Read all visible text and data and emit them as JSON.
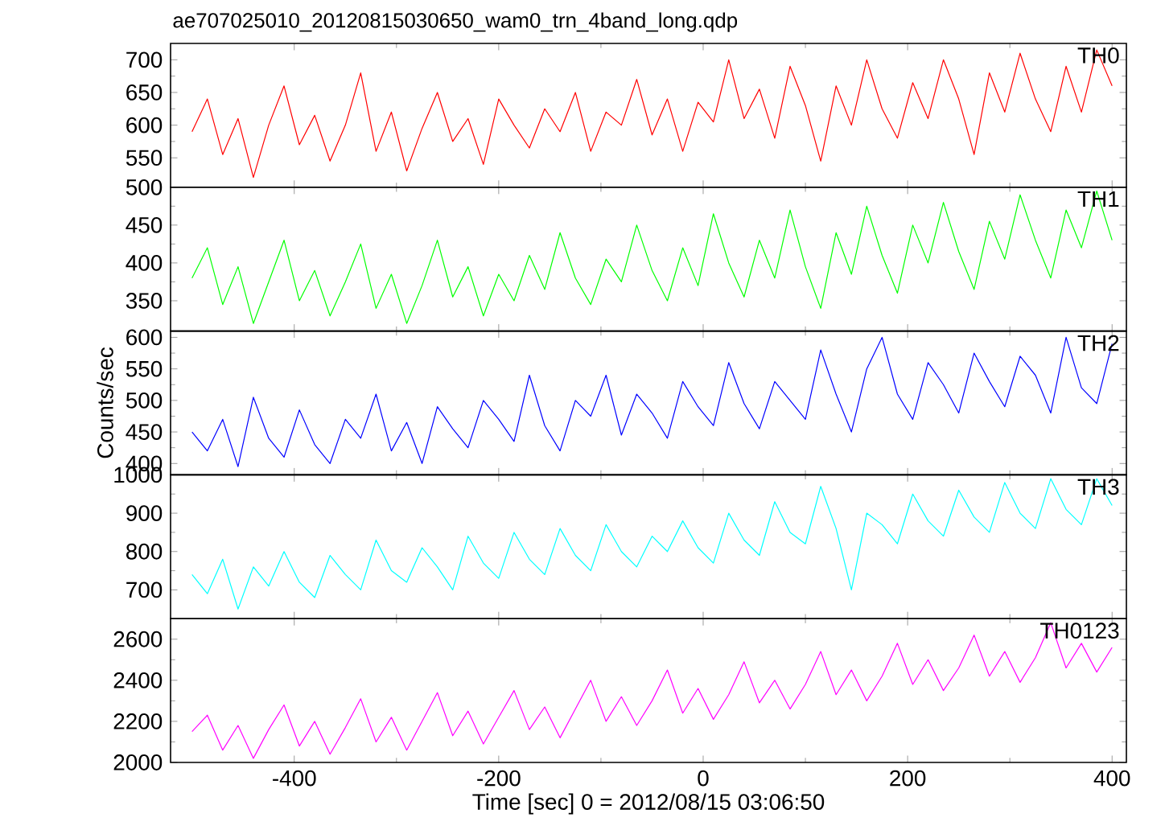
{
  "chart_data": [
    {
      "type": "line",
      "title": "ae707025010_20120815030650_wam0_trn_4band_long.qdp",
      "xlim": [
        -521,
        414
      ],
      "xticks": [
        -400,
        -200,
        0,
        200,
        400
      ],
      "ylim": [
        505,
        725
      ],
      "yticks": [
        550,
        600,
        650,
        700
      ],
      "tick_labels": "y",
      "x": [
        -500,
        -485,
        -470,
        -455,
        -440,
        -425,
        -410,
        -395,
        -380,
        -365,
        -350,
        -335,
        -320,
        -305,
        -290,
        -275,
        -260,
        -245,
        -230,
        -215,
        -200,
        -185,
        -170,
        -155,
        -140,
        -125,
        -110,
        -95,
        -80,
        -65,
        -50,
        -35,
        -20,
        -5,
        10,
        25,
        40,
        55,
        70,
        85,
        100,
        115,
        130,
        145,
        160,
        175,
        190,
        205,
        220,
        235,
        250,
        265,
        280,
        295,
        310,
        325,
        340,
        355,
        370,
        385,
        400
      ],
      "series": [
        {
          "name": "TH0",
          "color": "#ff0000",
          "values": [
            590,
            640,
            555,
            610,
            520,
            600,
            660,
            570,
            615,
            545,
            600,
            680,
            560,
            620,
            530,
            595,
            650,
            575,
            610,
            540,
            640,
            600,
            565,
            625,
            590,
            650,
            560,
            620,
            600,
            670,
            585,
            640,
            560,
            635,
            605,
            700,
            610,
            655,
            580,
            690,
            630,
            545,
            660,
            600,
            700,
            625,
            580,
            665,
            610,
            700,
            640,
            555,
            680,
            620,
            710,
            640,
            590,
            690,
            620,
            715,
            660
          ]
        }
      ]
    },
    {
      "type": "line",
      "xlim": [
        -521,
        414
      ],
      "xticks": [
        -400,
        -200,
        0,
        200,
        400
      ],
      "ylim": [
        310,
        500
      ],
      "yticks": [
        350,
        400,
        450,
        500
      ],
      "tick_labels": "y",
      "x": [
        -500,
        -485,
        -470,
        -455,
        -440,
        -425,
        -410,
        -395,
        -380,
        -365,
        -350,
        -335,
        -320,
        -305,
        -290,
        -275,
        -260,
        -245,
        -230,
        -215,
        -200,
        -185,
        -170,
        -155,
        -140,
        -125,
        -110,
        -95,
        -80,
        -65,
        -50,
        -35,
        -20,
        -5,
        10,
        25,
        40,
        55,
        70,
        85,
        100,
        115,
        130,
        145,
        160,
        175,
        190,
        205,
        220,
        235,
        250,
        265,
        280,
        295,
        310,
        325,
        340,
        355,
        370,
        385,
        400
      ],
      "series": [
        {
          "name": "TH1",
          "color": "#00ff00",
          "values": [
            380,
            420,
            345,
            395,
            320,
            375,
            430,
            350,
            390,
            330,
            375,
            425,
            340,
            385,
            320,
            370,
            430,
            355,
            395,
            330,
            385,
            350,
            410,
            365,
            440,
            380,
            345,
            405,
            375,
            450,
            390,
            350,
            420,
            370,
            465,
            400,
            355,
            430,
            380,
            470,
            395,
            340,
            440,
            385,
            475,
            410,
            360,
            450,
            400,
            480,
            415,
            365,
            455,
            405,
            490,
            430,
            380,
            470,
            420,
            495,
            430
          ]
        }
      ]
    },
    {
      "type": "line",
      "ylabel": "Counts/sec",
      "xlim": [
        -521,
        414
      ],
      "xticks": [
        -400,
        -200,
        0,
        200,
        400
      ],
      "ylim": [
        382,
        610
      ],
      "yticks": [
        400,
        450,
        500,
        550,
        600
      ],
      "tick_labels": "y",
      "x": [
        -500,
        -485,
        -470,
        -455,
        -440,
        -425,
        -410,
        -395,
        -380,
        -365,
        -350,
        -335,
        -320,
        -305,
        -290,
        -275,
        -260,
        -245,
        -230,
        -215,
        -200,
        -185,
        -170,
        -155,
        -140,
        -125,
        -110,
        -95,
        -80,
        -65,
        -50,
        -35,
        -20,
        -5,
        10,
        25,
        40,
        55,
        70,
        85,
        100,
        115,
        130,
        145,
        160,
        175,
        190,
        205,
        220,
        235,
        250,
        265,
        280,
        295,
        310,
        325,
        340,
        355,
        370,
        385,
        400
      ],
      "series": [
        {
          "name": "TH2",
          "color": "#0000ff",
          "values": [
            450,
            420,
            470,
            395,
            505,
            440,
            410,
            485,
            430,
            400,
            470,
            440,
            510,
            420,
            465,
            400,
            490,
            455,
            425,
            500,
            470,
            435,
            540,
            460,
            420,
            500,
            475,
            540,
            445,
            510,
            480,
            440,
            530,
            490,
            460,
            560,
            495,
            455,
            530,
            500,
            470,
            580,
            510,
            450,
            550,
            600,
            510,
            470,
            560,
            525,
            480,
            575,
            530,
            490,
            570,
            540,
            480,
            600,
            520,
            495,
            590
          ]
        }
      ]
    },
    {
      "type": "line",
      "xlim": [
        -521,
        414
      ],
      "xticks": [
        -400,
        -200,
        0,
        200,
        400
      ],
      "ylim": [
        625,
        1000
      ],
      "yticks": [
        700,
        800,
        900,
        1000
      ],
      "tick_labels": "y",
      "x": [
        -500,
        -485,
        -470,
        -455,
        -440,
        -425,
        -410,
        -395,
        -380,
        -365,
        -350,
        -335,
        -320,
        -305,
        -290,
        -275,
        -260,
        -245,
        -230,
        -215,
        -200,
        -185,
        -170,
        -155,
        -140,
        -125,
        -110,
        -95,
        -80,
        -65,
        -50,
        -35,
        -20,
        -5,
        10,
        25,
        40,
        55,
        70,
        85,
        100,
        115,
        130,
        145,
        160,
        175,
        190,
        205,
        220,
        235,
        250,
        265,
        280,
        295,
        310,
        325,
        340,
        355,
        370,
        385,
        400
      ],
      "series": [
        {
          "name": "TH3",
          "color": "#00ffff",
          "values": [
            740,
            690,
            780,
            650,
            760,
            710,
            800,
            720,
            680,
            790,
            740,
            700,
            830,
            750,
            720,
            810,
            760,
            700,
            840,
            770,
            730,
            850,
            780,
            740,
            860,
            790,
            750,
            870,
            800,
            760,
            840,
            800,
            880,
            810,
            770,
            900,
            830,
            790,
            930,
            850,
            820,
            970,
            860,
            700,
            900,
            870,
            820,
            950,
            880,
            840,
            960,
            890,
            850,
            980,
            900,
            860,
            990,
            910,
            870,
            990,
            920
          ]
        }
      ]
    },
    {
      "type": "line",
      "xlabel": "Time [sec] 0 = 2012/08/15 03:06:50",
      "xlim": [
        -521,
        414
      ],
      "xticks": [
        -400,
        -200,
        0,
        200,
        400
      ],
      "ylim": [
        2000,
        2700
      ],
      "yticks": [
        2000,
        2200,
        2400,
        2600
      ],
      "x": [
        -500,
        -485,
        -470,
        -455,
        -440,
        -425,
        -410,
        -395,
        -380,
        -365,
        -350,
        -335,
        -320,
        -305,
        -290,
        -275,
        -260,
        -245,
        -230,
        -215,
        -200,
        -185,
        -170,
        -155,
        -140,
        -125,
        -110,
        -95,
        -80,
        -65,
        -50,
        -35,
        -20,
        -5,
        10,
        25,
        40,
        55,
        70,
        85,
        100,
        115,
        130,
        145,
        160,
        175,
        190,
        205,
        220,
        235,
        250,
        265,
        280,
        295,
        310,
        325,
        340,
        355,
        370,
        385,
        400
      ],
      "series": [
        {
          "name": "TH0123",
          "color": "#ff00ff",
          "values": [
            2150,
            2230,
            2060,
            2180,
            2020,
            2160,
            2280,
            2080,
            2200,
            2040,
            2170,
            2310,
            2100,
            2220,
            2060,
            2200,
            2340,
            2130,
            2250,
            2090,
            2220,
            2350,
            2160,
            2270,
            2120,
            2260,
            2400,
            2200,
            2320,
            2180,
            2300,
            2450,
            2240,
            2360,
            2210,
            2330,
            2490,
            2290,
            2400,
            2260,
            2380,
            2540,
            2330,
            2450,
            2300,
            2420,
            2580,
            2380,
            2500,
            2350,
            2460,
            2620,
            2420,
            2540,
            2390,
            2510,
            2680,
            2460,
            2580,
            2440,
            2560
          ]
        }
      ]
    }
  ]
}
